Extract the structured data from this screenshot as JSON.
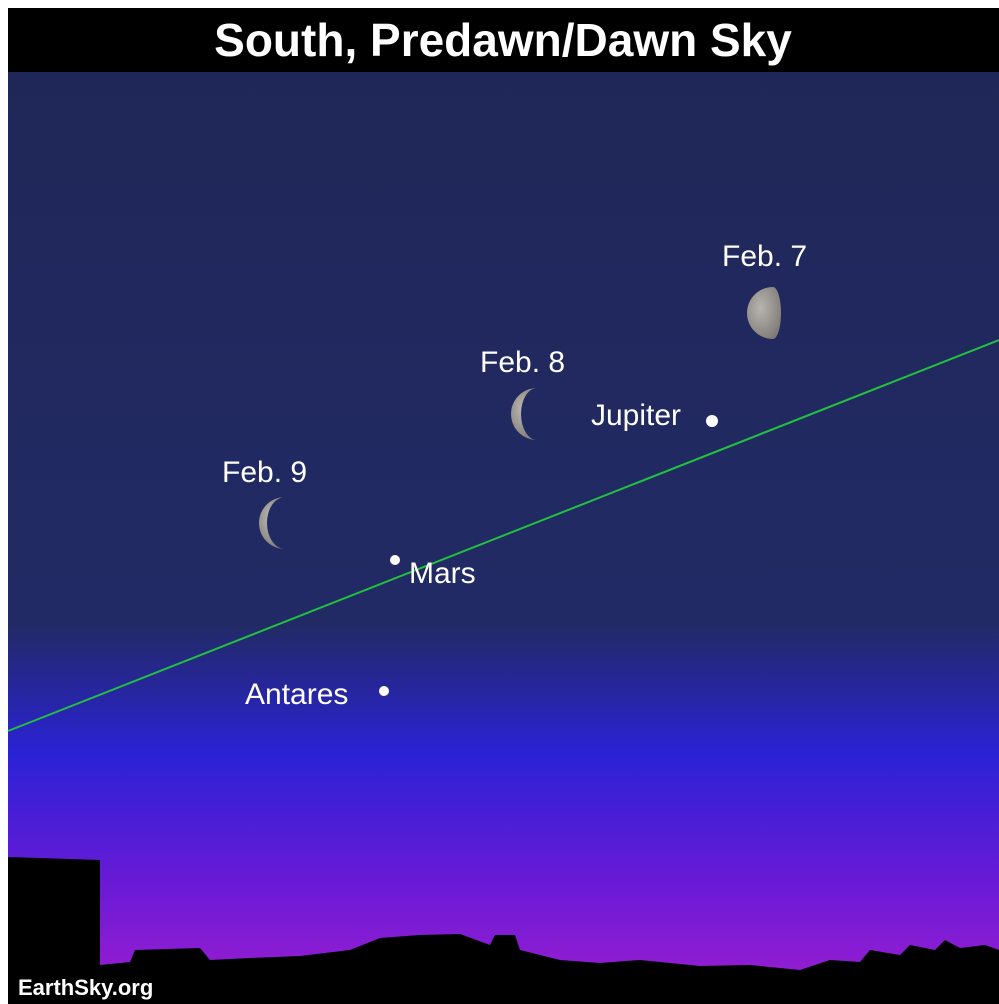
{
  "header": {
    "title": "South, Predawn/Dawn Sky"
  },
  "labels": {
    "moon_1": "Feb. 7",
    "moon_2": "Feb. 8",
    "moon_3": "Feb. 9",
    "planet_1": "Jupiter",
    "planet_2": "Mars",
    "star_1": "Antares"
  },
  "footer": {
    "credit": "EarthSky.org"
  }
}
